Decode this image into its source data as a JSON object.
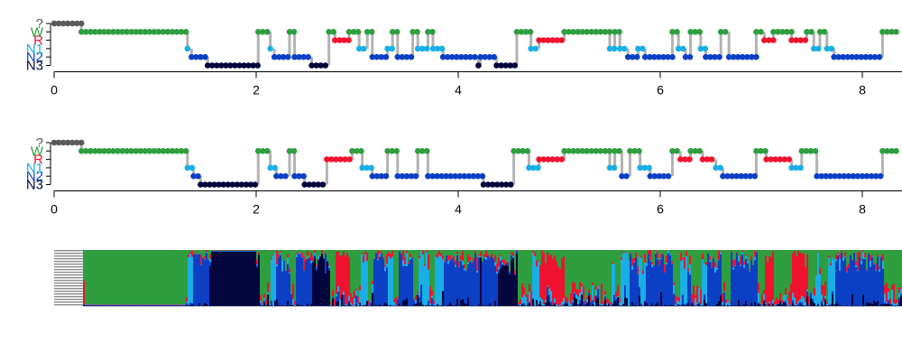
{
  "colors": {
    "unknown": "#5a5a5a",
    "W": "#2e9e3e",
    "R": "#f0132f",
    "N1": "#19aee6",
    "N2": "#0b3fc4",
    "N3": "#02063d",
    "transition_line": "#b3b3b3",
    "axis": "#000000"
  },
  "chart_data": [
    {
      "type": "scatter",
      "name_of_panel": "hypnogram-top",
      "y_categories": [
        "N3",
        "N2",
        "N1",
        "R",
        "W",
        "?"
      ],
      "y_tick_labels": [
        "N3",
        "N2",
        "N1",
        "R",
        "W",
        "?"
      ],
      "x_ticks": [
        0,
        2,
        4,
        6,
        8
      ],
      "xlim": [
        0,
        8.35
      ],
      "segments": [
        {
          "start": 0.0,
          "end": 0.27,
          "stage": "?"
        },
        {
          "start": 0.27,
          "end": 1.32,
          "stage": "W"
        },
        {
          "start": 1.32,
          "end": 1.36,
          "stage": "N1"
        },
        {
          "start": 1.36,
          "end": 1.52,
          "stage": "N2"
        },
        {
          "start": 1.52,
          "end": 2.02,
          "stage": "N3"
        },
        {
          "start": 2.02,
          "end": 2.14,
          "stage": "W"
        },
        {
          "start": 2.14,
          "end": 2.18,
          "stage": "N1"
        },
        {
          "start": 2.18,
          "end": 2.33,
          "stage": "N2"
        },
        {
          "start": 2.33,
          "end": 2.38,
          "stage": "W"
        },
        {
          "start": 2.38,
          "end": 2.55,
          "stage": "N2"
        },
        {
          "start": 2.55,
          "end": 2.72,
          "stage": "N3"
        },
        {
          "start": 2.72,
          "end": 2.78,
          "stage": "W"
        },
        {
          "start": 2.78,
          "end": 2.92,
          "stage": "R"
        },
        {
          "start": 2.92,
          "end": 3.02,
          "stage": "W"
        },
        {
          "start": 3.02,
          "end": 3.1,
          "stage": "N1"
        },
        {
          "start": 3.1,
          "end": 3.15,
          "stage": "W"
        },
        {
          "start": 3.15,
          "end": 3.3,
          "stage": "N2"
        },
        {
          "start": 3.3,
          "end": 3.35,
          "stage": "N1"
        },
        {
          "start": 3.35,
          "end": 3.4,
          "stage": "W"
        },
        {
          "start": 3.4,
          "end": 3.55,
          "stage": "N2"
        },
        {
          "start": 3.55,
          "end": 3.6,
          "stage": "W"
        },
        {
          "start": 3.6,
          "end": 3.7,
          "stage": "N1"
        },
        {
          "start": 3.7,
          "end": 3.75,
          "stage": "W"
        },
        {
          "start": 3.75,
          "end": 3.85,
          "stage": "N1"
        },
        {
          "start": 3.85,
          "end": 4.2,
          "stage": "N2"
        },
        {
          "start": 4.2,
          "end": 4.22,
          "stage": "N3"
        },
        {
          "start": 4.22,
          "end": 4.38,
          "stage": "N2"
        },
        {
          "start": 4.38,
          "end": 4.58,
          "stage": "N3"
        },
        {
          "start": 4.58,
          "end": 4.72,
          "stage": "W"
        },
        {
          "start": 4.72,
          "end": 4.8,
          "stage": "N1"
        },
        {
          "start": 4.8,
          "end": 5.05,
          "stage": "R"
        },
        {
          "start": 5.05,
          "end": 5.5,
          "stage": "W"
        },
        {
          "start": 5.5,
          "end": 5.55,
          "stage": "N1"
        },
        {
          "start": 5.55,
          "end": 5.6,
          "stage": "W"
        },
        {
          "start": 5.6,
          "end": 5.68,
          "stage": "N1"
        },
        {
          "start": 5.68,
          "end": 5.78,
          "stage": "N2"
        },
        {
          "start": 5.78,
          "end": 5.85,
          "stage": "N1"
        },
        {
          "start": 5.85,
          "end": 6.12,
          "stage": "N2"
        },
        {
          "start": 6.12,
          "end": 6.18,
          "stage": "W"
        },
        {
          "start": 6.18,
          "end": 6.25,
          "stage": "N1"
        },
        {
          "start": 6.25,
          "end": 6.3,
          "stage": "N2"
        },
        {
          "start": 6.3,
          "end": 6.4,
          "stage": "W"
        },
        {
          "start": 6.4,
          "end": 6.45,
          "stage": "N1"
        },
        {
          "start": 6.45,
          "end": 6.6,
          "stage": "N2"
        },
        {
          "start": 6.6,
          "end": 6.68,
          "stage": "W"
        },
        {
          "start": 6.68,
          "end": 6.95,
          "stage": "N2"
        },
        {
          "start": 6.95,
          "end": 7.03,
          "stage": "W"
        },
        {
          "start": 7.03,
          "end": 7.12,
          "stage": "R"
        },
        {
          "start": 7.12,
          "end": 7.3,
          "stage": "W"
        },
        {
          "start": 7.3,
          "end": 7.45,
          "stage": "R"
        },
        {
          "start": 7.45,
          "end": 7.52,
          "stage": "W"
        },
        {
          "start": 7.52,
          "end": 7.58,
          "stage": "N1"
        },
        {
          "start": 7.58,
          "end": 7.65,
          "stage": "W"
        },
        {
          "start": 7.65,
          "end": 7.72,
          "stage": "N1"
        },
        {
          "start": 7.72,
          "end": 8.2,
          "stage": "N2"
        },
        {
          "start": 8.2,
          "end": 8.35,
          "stage": "W"
        }
      ]
    },
    {
      "type": "scatter",
      "name_of_panel": "hypnogram-middle",
      "y_categories": [
        "N3",
        "N2",
        "N1",
        "R",
        "W",
        "?"
      ],
      "y_tick_labels": [
        "N3",
        "N2",
        "N1",
        "R",
        "W",
        "?"
      ],
      "x_ticks": [
        0,
        2,
        4,
        6,
        8
      ],
      "xlim": [
        0,
        8.35
      ],
      "segments": [
        {
          "start": 0.0,
          "end": 0.27,
          "stage": "?"
        },
        {
          "start": 0.27,
          "end": 1.32,
          "stage": "W"
        },
        {
          "start": 1.32,
          "end": 1.38,
          "stage": "N1"
        },
        {
          "start": 1.38,
          "end": 1.45,
          "stage": "N2"
        },
        {
          "start": 1.45,
          "end": 2.02,
          "stage": "N3"
        },
        {
          "start": 2.02,
          "end": 2.14,
          "stage": "W"
        },
        {
          "start": 2.14,
          "end": 2.2,
          "stage": "N1"
        },
        {
          "start": 2.2,
          "end": 2.33,
          "stage": "N2"
        },
        {
          "start": 2.33,
          "end": 2.38,
          "stage": "W"
        },
        {
          "start": 2.38,
          "end": 2.48,
          "stage": "N2"
        },
        {
          "start": 2.48,
          "end": 2.7,
          "stage": "N3"
        },
        {
          "start": 2.7,
          "end": 2.95,
          "stage": "R"
        },
        {
          "start": 2.95,
          "end": 3.05,
          "stage": "W"
        },
        {
          "start": 3.05,
          "end": 3.15,
          "stage": "N1"
        },
        {
          "start": 3.15,
          "end": 3.3,
          "stage": "N2"
        },
        {
          "start": 3.3,
          "end": 3.4,
          "stage": "W"
        },
        {
          "start": 3.4,
          "end": 3.6,
          "stage": "N2"
        },
        {
          "start": 3.6,
          "end": 3.7,
          "stage": "W"
        },
        {
          "start": 3.7,
          "end": 4.25,
          "stage": "N2"
        },
        {
          "start": 4.25,
          "end": 4.55,
          "stage": "N3"
        },
        {
          "start": 4.55,
          "end": 4.7,
          "stage": "W"
        },
        {
          "start": 4.7,
          "end": 4.8,
          "stage": "N1"
        },
        {
          "start": 4.8,
          "end": 5.05,
          "stage": "R"
        },
        {
          "start": 5.05,
          "end": 5.5,
          "stage": "W"
        },
        {
          "start": 5.5,
          "end": 5.55,
          "stage": "N1"
        },
        {
          "start": 5.55,
          "end": 5.62,
          "stage": "W"
        },
        {
          "start": 5.62,
          "end": 5.7,
          "stage": "N2"
        },
        {
          "start": 5.7,
          "end": 5.8,
          "stage": "W"
        },
        {
          "start": 5.8,
          "end": 5.9,
          "stage": "N1"
        },
        {
          "start": 5.9,
          "end": 6.12,
          "stage": "N2"
        },
        {
          "start": 6.12,
          "end": 6.2,
          "stage": "W"
        },
        {
          "start": 6.2,
          "end": 6.3,
          "stage": "R"
        },
        {
          "start": 6.3,
          "end": 6.42,
          "stage": "W"
        },
        {
          "start": 6.42,
          "end": 6.55,
          "stage": "R"
        },
        {
          "start": 6.55,
          "end": 6.62,
          "stage": "N1"
        },
        {
          "start": 6.62,
          "end": 6.95,
          "stage": "N2"
        },
        {
          "start": 6.95,
          "end": 7.05,
          "stage": "W"
        },
        {
          "start": 7.05,
          "end": 7.3,
          "stage": "R"
        },
        {
          "start": 7.3,
          "end": 7.4,
          "stage": "N1"
        },
        {
          "start": 7.4,
          "end": 7.55,
          "stage": "W"
        },
        {
          "start": 7.55,
          "end": 8.2,
          "stage": "N2"
        },
        {
          "start": 8.2,
          "end": 8.35,
          "stage": "W"
        }
      ]
    },
    {
      "type": "area",
      "name_of_panel": "stage-probability",
      "xlim": [
        0,
        8.35
      ],
      "series_order": [
        "W",
        "R",
        "N1",
        "N2",
        "N3",
        "?"
      ],
      "note_source": "stacked probability bands derived from hypnogram-top"
    }
  ],
  "stage_keys": [
    "N3",
    "N2",
    "N1",
    "R",
    "W",
    "?"
  ]
}
